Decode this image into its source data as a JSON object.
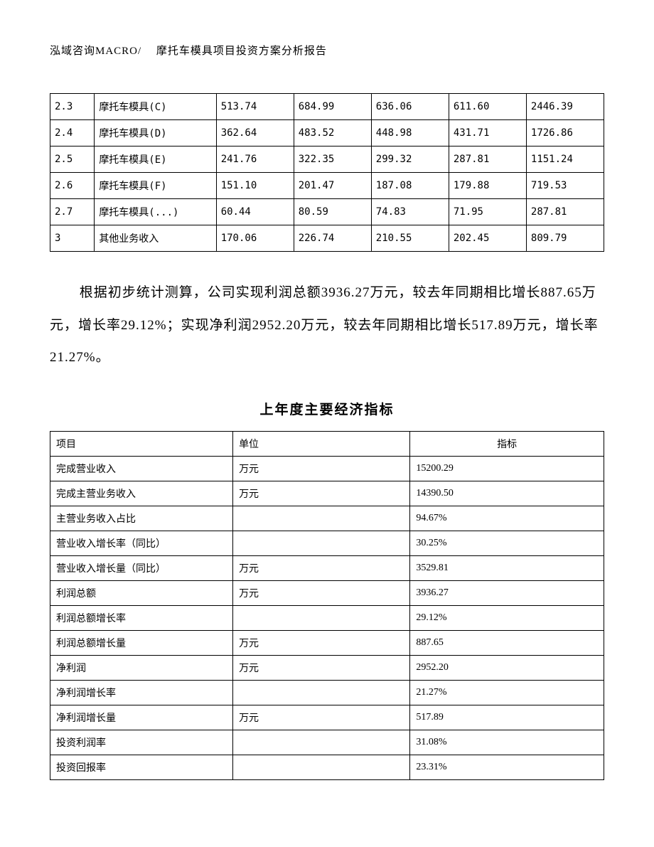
{
  "header": {
    "text": "泓域咨询MACRO/　 摩托车模具项目投资方案分析报告"
  },
  "table1": {
    "rows": [
      [
        "2.3",
        "摩托车模具(C)",
        "513.74",
        "684.99",
        "636.06",
        "611.60",
        "2446.39"
      ],
      [
        "2.4",
        "摩托车模具(D)",
        "362.64",
        "483.52",
        "448.98",
        "431.71",
        "1726.86"
      ],
      [
        "2.5",
        "摩托车模具(E)",
        "241.76",
        "322.35",
        "299.32",
        "287.81",
        "1151.24"
      ],
      [
        "2.6",
        "摩托车模具(F)",
        "151.10",
        "201.47",
        "187.08",
        "179.88",
        "719.53"
      ],
      [
        "2.7",
        "摩托车模具(...)",
        "60.44",
        "80.59",
        "74.83",
        "71.95",
        "287.81"
      ],
      [
        "3",
        "其他业务收入",
        "170.06",
        "226.74",
        "210.55",
        "202.45",
        "809.79"
      ]
    ],
    "col_widths": [
      "8%",
      "22%",
      "14%",
      "14%",
      "14%",
      "14%",
      "14%"
    ]
  },
  "paragraph": {
    "text": "根据初步统计测算，公司实现利润总额3936.27万元，较去年同期相比增长887.65万元，增长率29.12%；实现净利润2952.20万元，较去年同期相比增长517.89万元，增长率21.27%。"
  },
  "section_title": "上年度主要经济指标",
  "table2": {
    "headers": [
      "项目",
      "单位",
      "指标"
    ],
    "rows": [
      [
        "完成营业收入",
        "万元",
        "15200.29"
      ],
      [
        "完成主营业务收入",
        "万元",
        "14390.50"
      ],
      [
        "主营业务收入占比",
        "",
        "94.67%"
      ],
      [
        "营业收入增长率（同比）",
        "",
        "30.25%"
      ],
      [
        "营业收入增长量（同比）",
        "万元",
        "3529.81"
      ],
      [
        "利润总额",
        "万元",
        "3936.27"
      ],
      [
        "利润总额增长率",
        "",
        "29.12%"
      ],
      [
        "利润总额增长量",
        "万元",
        "887.65"
      ],
      [
        "净利润",
        "万元",
        "2952.20"
      ],
      [
        "净利润增长率",
        "",
        "21.27%"
      ],
      [
        "净利润增长量",
        "万元",
        "517.89"
      ],
      [
        "投资利润率",
        "",
        "31.08%"
      ],
      [
        "投资回报率",
        "",
        "23.31%"
      ]
    ],
    "col_widths": [
      "33%",
      "32%",
      "35%"
    ]
  },
  "styling": {
    "background_color": "#ffffff",
    "text_color": "#000000",
    "border_color": "#000000",
    "header_fontsize": 15,
    "table_fontsize": 14,
    "paragraph_fontsize": 19,
    "paragraph_line_height": 2.4,
    "section_title_fontsize": 19,
    "font_family": "SimSun"
  }
}
